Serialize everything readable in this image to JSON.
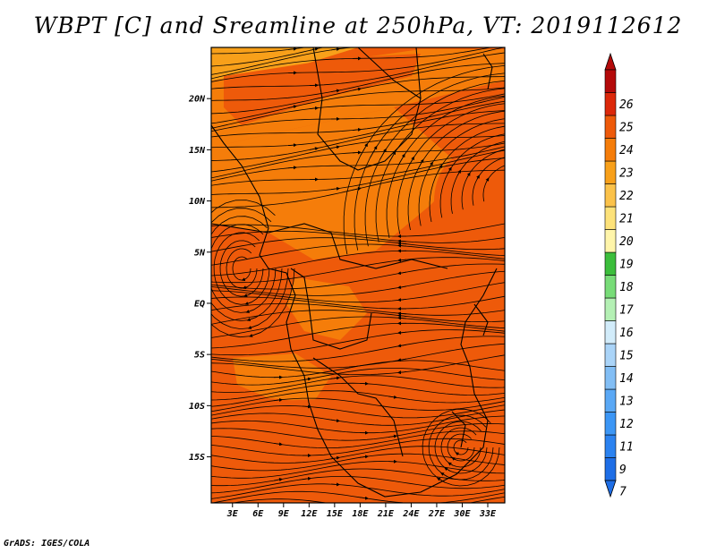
{
  "title": "WBPT [C] and Sreamline at 250hPa, VT: 2019112612",
  "credit": "GrADS: IGES/COLA",
  "map": {
    "lat_ticks": [
      {
        "lat": 20,
        "label": "20N"
      },
      {
        "lat": 15,
        "label": "15N"
      },
      {
        "lat": 10,
        "label": "10N"
      },
      {
        "lat": 5,
        "label": "5N"
      },
      {
        "lat": 0,
        "label": "EQ"
      },
      {
        "lat": -5,
        "label": "5S"
      },
      {
        "lat": -10,
        "label": "10S"
      },
      {
        "lat": -15,
        "label": "15S"
      }
    ],
    "lon_ticks": [
      {
        "lon": 3,
        "label": "3E"
      },
      {
        "lon": 6,
        "label": "6E"
      },
      {
        "lon": 9,
        "label": "9E"
      },
      {
        "lon": 12,
        "label": "12E"
      },
      {
        "lon": 15,
        "label": "15E"
      },
      {
        "lon": 18,
        "label": "18E"
      },
      {
        "lon": 21,
        "label": "21E"
      },
      {
        "lon": 24,
        "label": "24E"
      },
      {
        "lon": 27,
        "label": "27E"
      },
      {
        "lon": 30,
        "label": "30E"
      },
      {
        "lon": 33,
        "label": "33E"
      }
    ],
    "lat_range": [
      -19.5,
      25
    ],
    "lon_range": [
      0.5,
      35
    ]
  },
  "colorbar": {
    "labels": [
      "7",
      "9",
      "11",
      "12",
      "13",
      "14",
      "15",
      "16",
      "17",
      "18",
      "19",
      "20",
      "21",
      "22",
      "23",
      "24",
      "25",
      "26"
    ],
    "colors": [
      "#1e6ee6",
      "#2b82f0",
      "#3c96f5",
      "#5aa8f5",
      "#82bef5",
      "#aad4f8",
      "#d2ecfa",
      "#b4f0b4",
      "#78dc78",
      "#3cbe3c",
      "#fff5aa",
      "#fde27a",
      "#fbc24a",
      "#f8a01a",
      "#f57d0a",
      "#ee5a0a",
      "#dc280a",
      "#b40a0a"
    ],
    "below_color": "#1e6ee6",
    "above_color": "#b40a0a"
  }
}
